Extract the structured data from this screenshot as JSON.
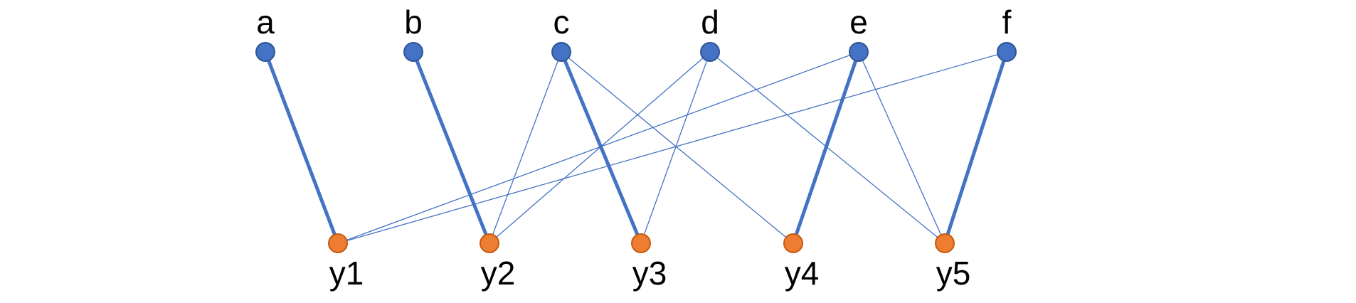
{
  "top_nodes": [
    {
      "id": "a",
      "label": "a"
    },
    {
      "id": "b",
      "label": "b"
    },
    {
      "id": "c",
      "label": "c"
    },
    {
      "id": "d",
      "label": "d"
    },
    {
      "id": "e",
      "label": "e"
    },
    {
      "id": "f",
      "label": "f"
    }
  ],
  "bottom_nodes": [
    {
      "id": "y1",
      "label": "y1"
    },
    {
      "id": "y2",
      "label": "y2"
    },
    {
      "id": "y3",
      "label": "y3"
    },
    {
      "id": "y4",
      "label": "y4"
    },
    {
      "id": "y5",
      "label": "y5"
    }
  ],
  "edges": [
    {
      "from": "a",
      "to": "y1",
      "matched": true
    },
    {
      "from": "b",
      "to": "y2",
      "matched": true
    },
    {
      "from": "c",
      "to": "y2",
      "matched": false
    },
    {
      "from": "c",
      "to": "y3",
      "matched": true
    },
    {
      "from": "c",
      "to": "y4",
      "matched": false
    },
    {
      "from": "d",
      "to": "y2",
      "matched": false
    },
    {
      "from": "d",
      "to": "y3",
      "matched": false
    },
    {
      "from": "d",
      "to": "y5",
      "matched": false
    },
    {
      "from": "e",
      "to": "y1",
      "matched": false
    },
    {
      "from": "e",
      "to": "y4",
      "matched": true
    },
    {
      "from": "e",
      "to": "y5",
      "matched": false
    },
    {
      "from": "f",
      "to": "y1",
      "matched": false
    },
    {
      "from": "f",
      "to": "y5",
      "matched": true
    }
  ],
  "colors": {
    "top_node_fill": "#4472C4",
    "top_node_stroke": "#2F5597",
    "bottom_node_fill": "#ED7D31",
    "bottom_node_stroke": "#C55A11",
    "edge": "#4472C4",
    "label": "#000000"
  }
}
